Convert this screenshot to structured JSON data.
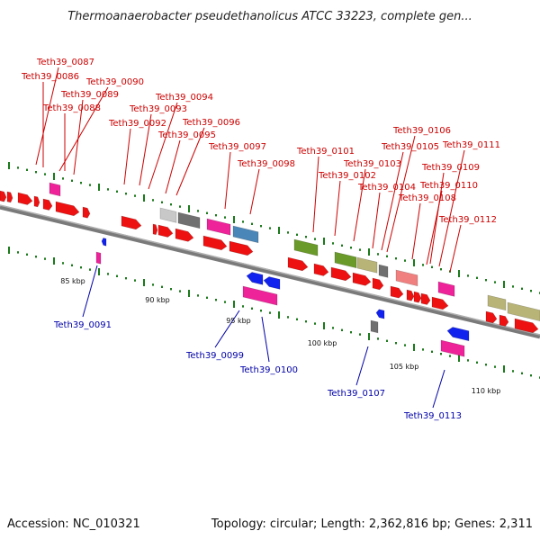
{
  "title": "Thermoanaerobacter pseudethanolicus ATCC 33223, complete gen...",
  "footer": {
    "accession": "Accession: NC_010321",
    "summary": "Topology: circular; Length: 2,362,816 bp; Genes: 2,311"
  },
  "colors": {
    "forward_label": "#cc0000",
    "reverse_label": "#0000aa",
    "backbone": "#808080",
    "tick": "#1a7a1a"
  },
  "scale_labels": [
    "85 kbp",
    "90 kbp",
    "95 kbp",
    "100 kbp",
    "105 kbp",
    "110 kbp"
  ],
  "forward_labels": [
    "Teth39_0087",
    "Teth39_0086",
    "Teth39_0090",
    "Teth39_0089",
    "Teth39_0088",
    "Teth39_0094",
    "Teth39_0093",
    "Teth39_0092",
    "Teth39_0096",
    "Teth39_0095",
    "Teth39_0097",
    "Teth39_0098",
    "Teth39_0101",
    "Teth39_0102",
    "Teth39_0103",
    "Teth39_0104",
    "Teth39_0106",
    "Teth39_0105",
    "Teth39_0111",
    "Teth39_0109",
    "Teth39_0110",
    "Teth39_0108",
    "Teth39_0112"
  ],
  "reverse_labels": [
    "Teth39_0091",
    "Teth39_0099",
    "Teth39_0100",
    "Teth39_0107",
    "Teth39_0113"
  ],
  "feature_colors": {
    "cds": "#ee1111",
    "magenta": "#ee2299",
    "blue": "#1122ee",
    "light_gray": "#c8c8c8",
    "dark_gray": "#707070",
    "steel_blue": "#4a86b8",
    "olive": "#6a9a2a",
    "khaki": "#b8b478",
    "salmon": "#f08080"
  }
}
